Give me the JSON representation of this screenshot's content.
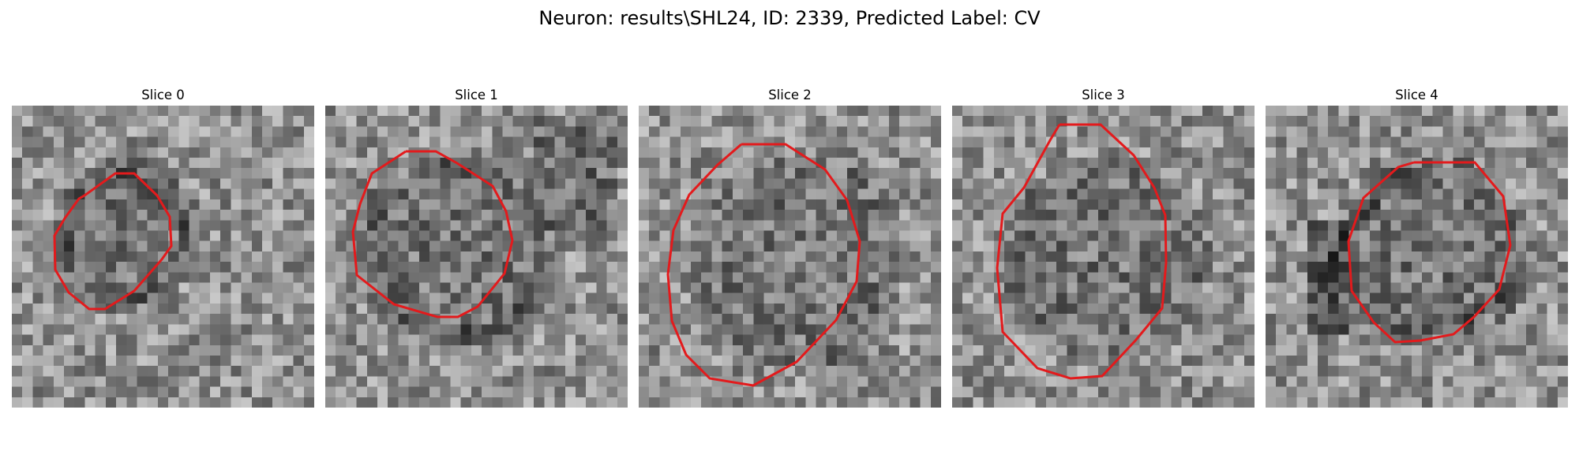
{
  "figure": {
    "title": "Neuron: results\\SHL24, ID: 2339, Predicted Label: CV",
    "contour_color": "#e31a1c",
    "colormap": "gray"
  },
  "slices": [
    {
      "title": "Slice 0"
    },
    {
      "title": "Slice 1"
    },
    {
      "title": "Slice 2"
    },
    {
      "title": "Slice 3"
    },
    {
      "title": "Slice 4"
    }
  ]
}
